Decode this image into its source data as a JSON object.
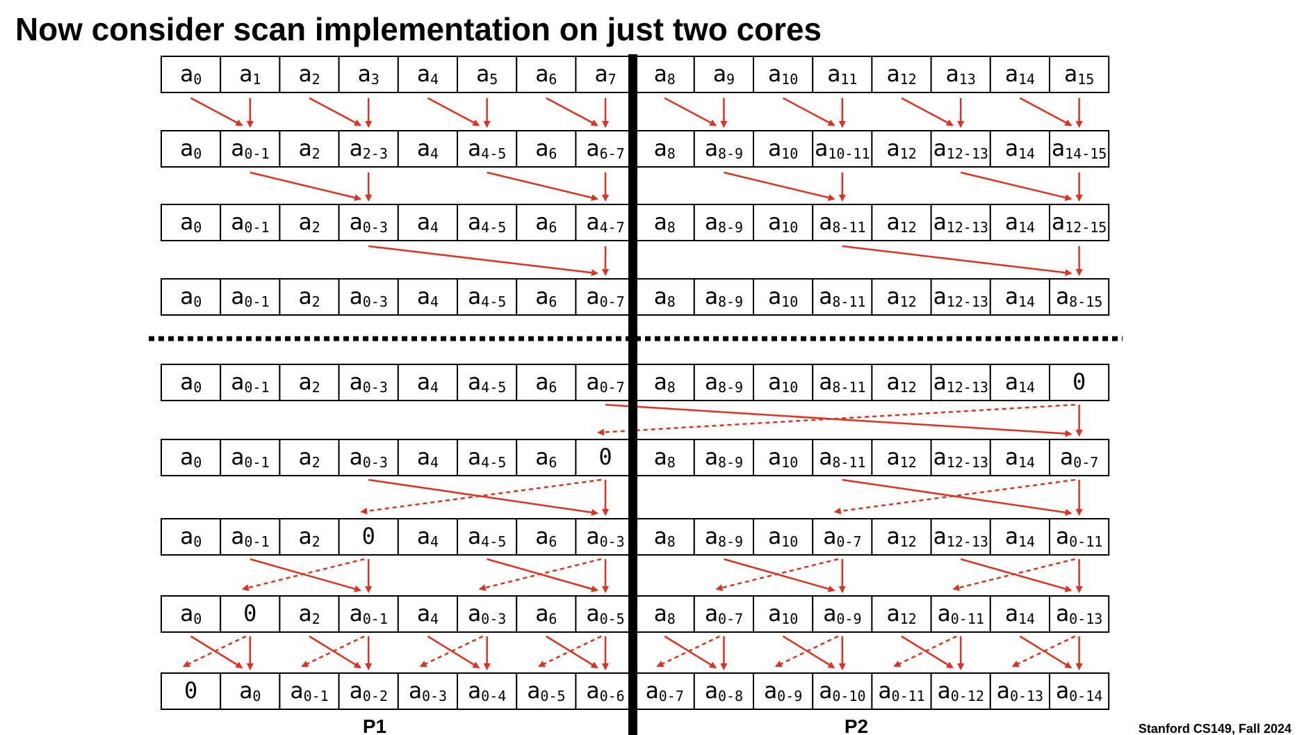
{
  "title": "Now consider scan implementation on just two cores",
  "rows": [
    [
      {
        "t": "a",
        "s": "0"
      },
      {
        "t": "a",
        "s": "1"
      },
      {
        "t": "a",
        "s": "2"
      },
      {
        "t": "a",
        "s": "3"
      },
      {
        "t": "a",
        "s": "4"
      },
      {
        "t": "a",
        "s": "5"
      },
      {
        "t": "a",
        "s": "6"
      },
      {
        "t": "a",
        "s": "7"
      },
      {
        "t": "a",
        "s": "8"
      },
      {
        "t": "a",
        "s": "9"
      },
      {
        "t": "a",
        "s": "10"
      },
      {
        "t": "a",
        "s": "11"
      },
      {
        "t": "a",
        "s": "12"
      },
      {
        "t": "a",
        "s": "13"
      },
      {
        "t": "a",
        "s": "14"
      },
      {
        "t": "a",
        "s": "15"
      }
    ],
    [
      {
        "t": "a",
        "s": "0"
      },
      {
        "t": "a",
        "s": "0-1"
      },
      {
        "t": "a",
        "s": "2"
      },
      {
        "t": "a",
        "s": "2-3"
      },
      {
        "t": "a",
        "s": "4"
      },
      {
        "t": "a",
        "s": "4-5"
      },
      {
        "t": "a",
        "s": "6"
      },
      {
        "t": "a",
        "s": "6-7"
      },
      {
        "t": "a",
        "s": "8"
      },
      {
        "t": "a",
        "s": "8-9"
      },
      {
        "t": "a",
        "s": "10"
      },
      {
        "t": "a",
        "s": "10-11"
      },
      {
        "t": "a",
        "s": "12"
      },
      {
        "t": "a",
        "s": "12-13"
      },
      {
        "t": "a",
        "s": "14"
      },
      {
        "t": "a",
        "s": "14-15"
      }
    ],
    [
      {
        "t": "a",
        "s": "0"
      },
      {
        "t": "a",
        "s": "0-1"
      },
      {
        "t": "a",
        "s": "2"
      },
      {
        "t": "a",
        "s": "0-3"
      },
      {
        "t": "a",
        "s": "4"
      },
      {
        "t": "a",
        "s": "4-5"
      },
      {
        "t": "a",
        "s": "6"
      },
      {
        "t": "a",
        "s": "4-7"
      },
      {
        "t": "a",
        "s": "8"
      },
      {
        "t": "a",
        "s": "8-9"
      },
      {
        "t": "a",
        "s": "10"
      },
      {
        "t": "a",
        "s": "8-11"
      },
      {
        "t": "a",
        "s": "12"
      },
      {
        "t": "a",
        "s": "12-13"
      },
      {
        "t": "a",
        "s": "14"
      },
      {
        "t": "a",
        "s": "12-15"
      }
    ],
    [
      {
        "t": "a",
        "s": "0"
      },
      {
        "t": "a",
        "s": "0-1"
      },
      {
        "t": "a",
        "s": "2"
      },
      {
        "t": "a",
        "s": "0-3"
      },
      {
        "t": "a",
        "s": "4"
      },
      {
        "t": "a",
        "s": "4-5"
      },
      {
        "t": "a",
        "s": "6"
      },
      {
        "t": "a",
        "s": "0-7"
      },
      {
        "t": "a",
        "s": "8"
      },
      {
        "t": "a",
        "s": "8-9"
      },
      {
        "t": "a",
        "s": "10"
      },
      {
        "t": "a",
        "s": "8-11"
      },
      {
        "t": "a",
        "s": "12"
      },
      {
        "t": "a",
        "s": "12-13"
      },
      {
        "t": "a",
        "s": "14"
      },
      {
        "t": "a",
        "s": "8-15"
      }
    ],
    [
      {
        "t": "a",
        "s": "0"
      },
      {
        "t": "a",
        "s": "0-1"
      },
      {
        "t": "a",
        "s": "2"
      },
      {
        "t": "a",
        "s": "0-3"
      },
      {
        "t": "a",
        "s": "4"
      },
      {
        "t": "a",
        "s": "4-5"
      },
      {
        "t": "a",
        "s": "6"
      },
      {
        "t": "a",
        "s": "0-7"
      },
      {
        "t": "a",
        "s": "8"
      },
      {
        "t": "a",
        "s": "8-9"
      },
      {
        "t": "a",
        "s": "10"
      },
      {
        "t": "a",
        "s": "8-11"
      },
      {
        "t": "a",
        "s": "12"
      },
      {
        "t": "a",
        "s": "12-13"
      },
      {
        "t": "a",
        "s": "14"
      },
      {
        "t": "0"
      }
    ],
    [
      {
        "t": "a",
        "s": "0"
      },
      {
        "t": "a",
        "s": "0-1"
      },
      {
        "t": "a",
        "s": "2"
      },
      {
        "t": "a",
        "s": "0-3"
      },
      {
        "t": "a",
        "s": "4"
      },
      {
        "t": "a",
        "s": "4-5"
      },
      {
        "t": "a",
        "s": "6"
      },
      {
        "t": "0"
      },
      {
        "t": "a",
        "s": "8"
      },
      {
        "t": "a",
        "s": "8-9"
      },
      {
        "t": "a",
        "s": "10"
      },
      {
        "t": "a",
        "s": "8-11"
      },
      {
        "t": "a",
        "s": "12"
      },
      {
        "t": "a",
        "s": "12-13"
      },
      {
        "t": "a",
        "s": "14"
      },
      {
        "t": "a",
        "s": "0-7"
      }
    ],
    [
      {
        "t": "a",
        "s": "0"
      },
      {
        "t": "a",
        "s": "0-1"
      },
      {
        "t": "a",
        "s": "2"
      },
      {
        "t": "0"
      },
      {
        "t": "a",
        "s": "4"
      },
      {
        "t": "a",
        "s": "4-5"
      },
      {
        "t": "a",
        "s": "6"
      },
      {
        "t": "a",
        "s": "0-3"
      },
      {
        "t": "a",
        "s": "8"
      },
      {
        "t": "a",
        "s": "8-9"
      },
      {
        "t": "a",
        "s": "10"
      },
      {
        "t": "a",
        "s": "0-7"
      },
      {
        "t": "a",
        "s": "12"
      },
      {
        "t": "a",
        "s": "12-13"
      },
      {
        "t": "a",
        "s": "14"
      },
      {
        "t": "a",
        "s": "0-11"
      }
    ],
    [
      {
        "t": "a",
        "s": "0"
      },
      {
        "t": "0"
      },
      {
        "t": "a",
        "s": "2"
      },
      {
        "t": "a",
        "s": "0-1"
      },
      {
        "t": "a",
        "s": "4"
      },
      {
        "t": "a",
        "s": "0-3"
      },
      {
        "t": "a",
        "s": "6"
      },
      {
        "t": "a",
        "s": "0-5"
      },
      {
        "t": "a",
        "s": "8"
      },
      {
        "t": "a",
        "s": "0-7"
      },
      {
        "t": "a",
        "s": "10"
      },
      {
        "t": "a",
        "s": "0-9"
      },
      {
        "t": "a",
        "s": "12"
      },
      {
        "t": "a",
        "s": "0-11"
      },
      {
        "t": "a",
        "s": "14"
      },
      {
        "t": "a",
        "s": "0-13"
      }
    ],
    [
      {
        "t": "0"
      },
      {
        "t": "a",
        "s": "0"
      },
      {
        "t": "a",
        "s": "0-1"
      },
      {
        "t": "a",
        "s": "0-2"
      },
      {
        "t": "a",
        "s": "0-3"
      },
      {
        "t": "a",
        "s": "0-4"
      },
      {
        "t": "a",
        "s": "0-5"
      },
      {
        "t": "a",
        "s": "0-6"
      },
      {
        "t": "a",
        "s": "0-7"
      },
      {
        "t": "a",
        "s": "0-8"
      },
      {
        "t": "a",
        "s": "0-9"
      },
      {
        "t": "a",
        "s": "0-10"
      },
      {
        "t": "a",
        "s": "0-11"
      },
      {
        "t": "a",
        "s": "0-12"
      },
      {
        "t": "a",
        "s": "0-13"
      },
      {
        "t": "a",
        "s": "0-14"
      }
    ]
  ],
  "labels": [
    "P1",
    "P2"
  ],
  "footer": "Stanford CS149, Fall 2024"
}
